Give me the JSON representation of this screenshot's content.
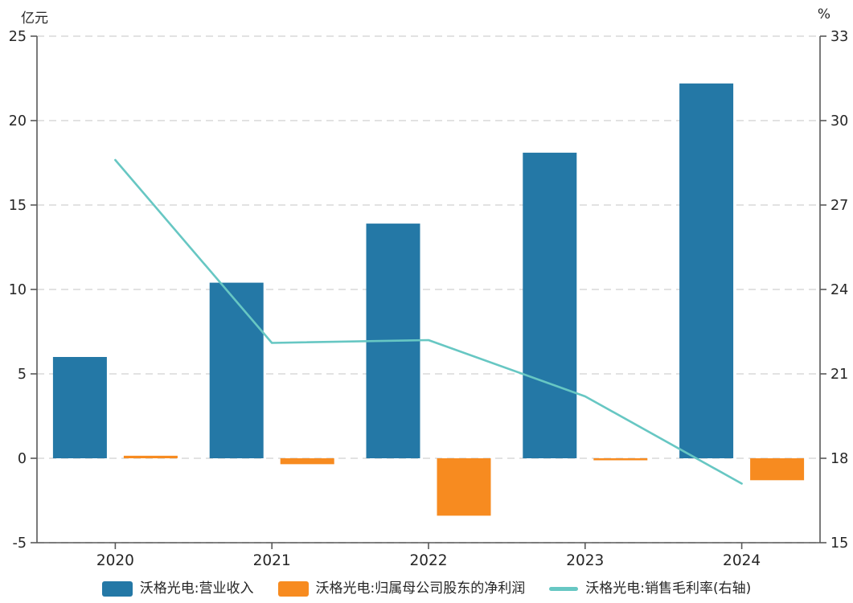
{
  "chart_data": {
    "type": "bar",
    "subtype": "combo-bar-line-dual-axis",
    "categories": [
      "2020",
      "2021",
      "2022",
      "2023",
      "2024"
    ],
    "series": [
      {
        "name": "沃格光电:营业收入",
        "kind": "bar",
        "axis": "left",
        "color": "#2478A6",
        "values": [
          6.0,
          10.4,
          13.9,
          18.1,
          22.2
        ]
      },
      {
        "name": "沃格光电:归属母公司股东的净利润",
        "kind": "bar",
        "axis": "left",
        "color": "#F78B20",
        "values": [
          0.15,
          -0.35,
          -3.4,
          -0.05,
          -1.3
        ]
      },
      {
        "name": "沃格光电:销售毛利率(右轴)",
        "kind": "line",
        "axis": "right",
        "color": "#67C7C3",
        "values": [
          28.6,
          22.1,
          22.2,
          20.2,
          17.1
        ]
      }
    ],
    "left_axis": {
      "title": "亿元",
      "min": -5,
      "max": 25,
      "ticks": [
        -5,
        0,
        5,
        10,
        15,
        20,
        25
      ]
    },
    "right_axis": {
      "title": "%",
      "min": 15,
      "max": 33,
      "ticks": [
        15,
        18,
        21,
        24,
        27,
        30,
        33
      ]
    },
    "grid": true,
    "legend_position": "bottom",
    "colors": {
      "grid_line": "#E2E2E2",
      "axis_line": "#595959",
      "tick_text": "#262626",
      "background": "#FFFFFF"
    }
  }
}
